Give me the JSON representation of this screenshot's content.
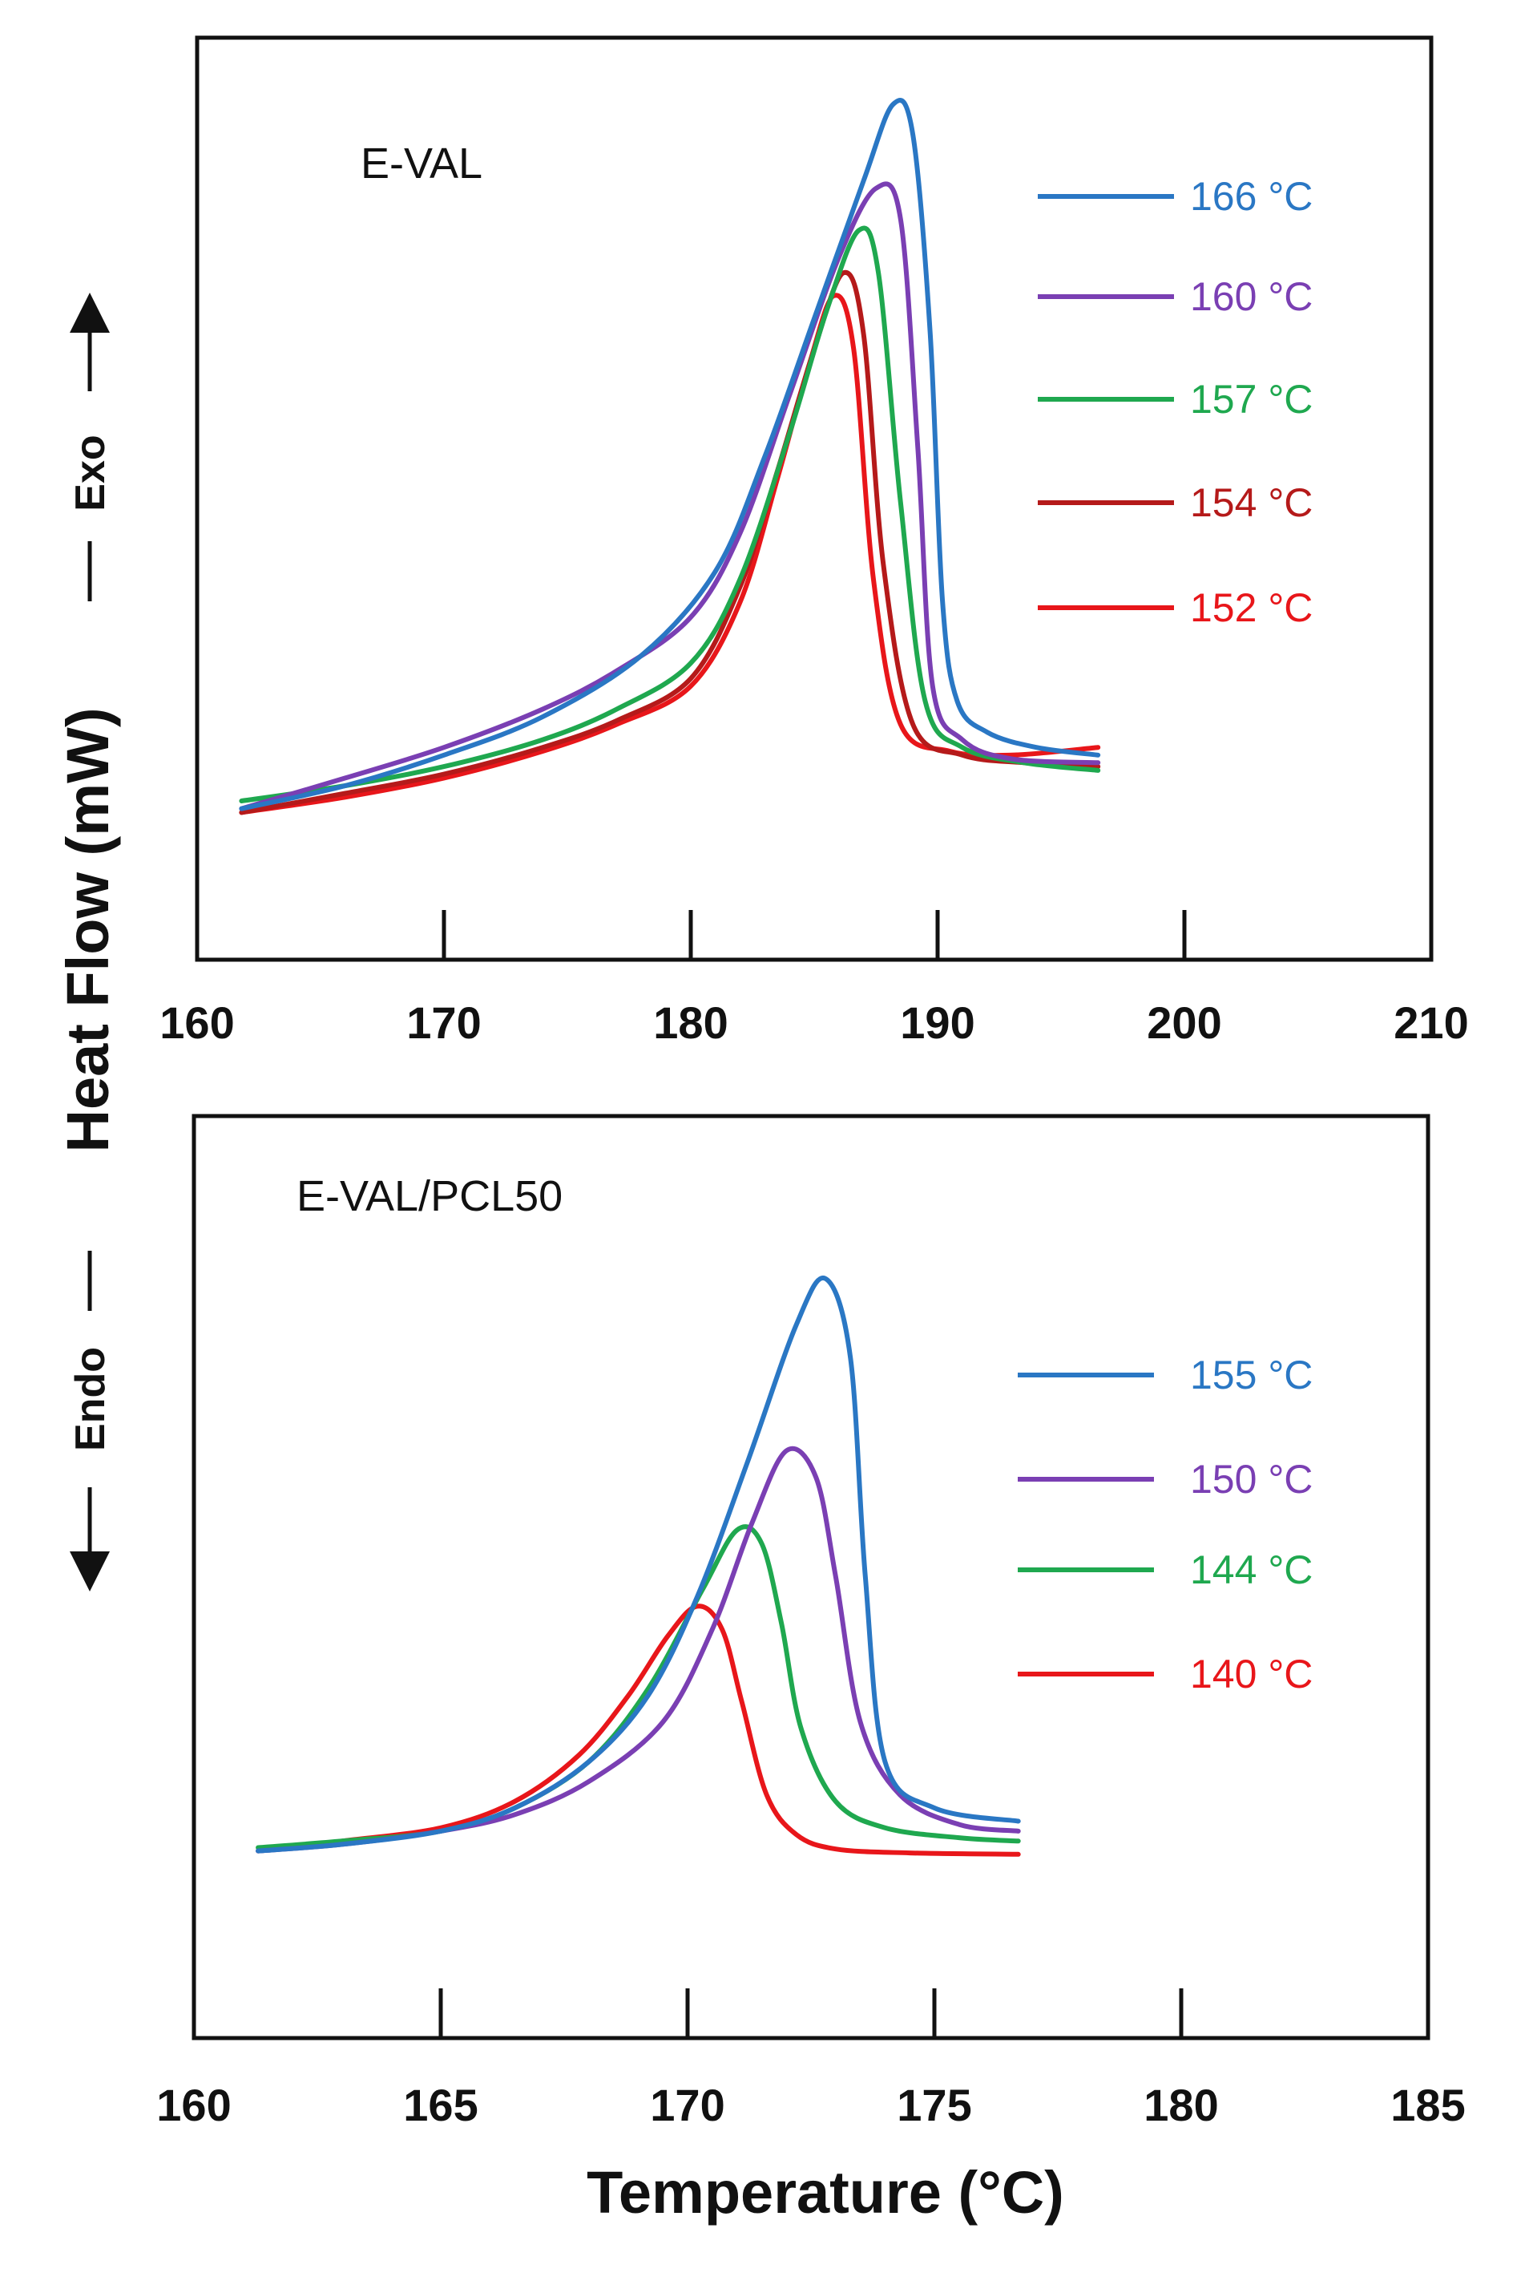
{
  "chart_data": [
    {
      "type": "line",
      "title": "E-VAL",
      "xlabel": "Temperature (°C)",
      "ylabel": "Heat Flow (mW)",
      "xlim": [
        160,
        210
      ],
      "ylim": [
        0,
        100
      ],
      "xticks": [
        "160",
        "170",
        "180",
        "190",
        "200",
        "210"
      ],
      "series": [
        {
          "name": "166 °C",
          "color": "#2a77c4",
          "x": [
            161.8,
            166,
            170,
            174,
            178,
            181,
            183,
            185,
            187,
            188.2,
            189,
            189.7,
            190.2,
            190.8,
            192,
            194,
            196.5
          ],
          "y": [
            8,
            11,
            15,
            20,
            28,
            39,
            54,
            72,
            90,
            100,
            96,
            70,
            35,
            22,
            18,
            16,
            15
          ]
        },
        {
          "name": "160 °C",
          "color": "#7a3fb3",
          "x": [
            161.8,
            166,
            170,
            174,
            177,
            180,
            182,
            184,
            186,
            187.5,
            188.5,
            189.2,
            189.8,
            191,
            193,
            196.5
          ],
          "y": [
            8,
            12,
            16,
            21,
            26,
            33,
            44,
            62,
            80,
            89,
            85,
            55,
            24,
            17,
            14.5,
            14
          ]
        },
        {
          "name": "157 °C",
          "color": "#1fa84f",
          "x": [
            161.8,
            166,
            170,
            174,
            177,
            180,
            182,
            184,
            185.5,
            186.8,
            187.6,
            188.5,
            189.5,
            191,
            193.5,
            196.5
          ],
          "y": [
            9,
            11,
            13.5,
            17,
            21,
            27,
            38,
            57,
            73,
            83.5,
            78,
            48,
            22,
            16,
            14,
            13
          ]
        },
        {
          "name": "154 °C",
          "color": "#b51a1a",
          "x": [
            161.8,
            166,
            170,
            174,
            177,
            180,
            182,
            183.5,
            185,
            186.2,
            187,
            187.8,
            189,
            191,
            193.5,
            196.5
          ],
          "y": [
            7.5,
            10,
            12.5,
            16,
            19.5,
            25,
            37,
            52,
            68,
            78,
            70,
            40,
            19,
            15,
            14,
            13.5
          ]
        },
        {
          "name": "152 °C",
          "color": "#e8161a",
          "x": [
            161.8,
            166,
            170,
            174,
            177,
            180,
            182,
            183.5,
            184.8,
            185.8,
            186.6,
            187.4,
            188.5,
            190.5,
            193,
            196.5
          ],
          "y": [
            7.5,
            9.5,
            12,
            15.5,
            19,
            24,
            35,
            51,
            66,
            75,
            68,
            38,
            19,
            15.5,
            15,
            16
          ]
        }
      ]
    },
    {
      "type": "line",
      "title": "E-VAL/PCL50",
      "xlabel": "Temperature (°C)",
      "ylabel": "Heat Flow (mW)",
      "xlim": [
        160,
        185
      ],
      "ylim": [
        0,
        100
      ],
      "xticks": [
        "160",
        "165",
        "170",
        "175",
        "180",
        "185"
      ],
      "series": [
        {
          "name": "155 °C",
          "color": "#2a77c4",
          "x": [
            161.3,
            163,
            165,
            166.5,
            168,
            169.2,
            170.2,
            171.2,
            172.2,
            172.8,
            173.3,
            173.6,
            174,
            175,
            176.7
          ],
          "y": [
            13.5,
            14.5,
            16.5,
            20,
            27,
            37,
            52,
            72,
            93,
            100,
            88,
            55,
            27,
            20,
            18
          ]
        },
        {
          "name": "150 °C",
          "color": "#7a3fb3",
          "x": [
            161.3,
            163,
            165,
            166.5,
            168,
            169.5,
            170.5,
            171.3,
            172,
            172.6,
            173,
            173.5,
            174.3,
            175.5,
            176.7
          ],
          "y": [
            13.5,
            14.5,
            16.5,
            19,
            24,
            33,
            47,
            63,
            74,
            70,
            55,
            33,
            22,
            17.5,
            16.5
          ]
        },
        {
          "name": "144 °C",
          "color": "#1fa84f",
          "x": [
            161.3,
            163,
            165,
            166.5,
            168,
            169.2,
            170.3,
            171,
            171.5,
            171.9,
            172.3,
            173,
            174,
            175.5,
            176.7
          ],
          "y": [
            14,
            15,
            16.5,
            20,
            27,
            38,
            53,
            62,
            60,
            48,
            32,
            21,
            17,
            15.5,
            15
          ]
        },
        {
          "name": "140 °C",
          "color": "#e8161a",
          "x": [
            161.3,
            163,
            165,
            166.5,
            167.8,
            168.8,
            169.6,
            170.2,
            170.7,
            171.1,
            171.6,
            172.2,
            173,
            174.5,
            176.7
          ],
          "y": [
            13.5,
            15,
            17,
            21,
            28,
            37,
            46,
            50.5,
            47,
            36,
            22,
            16,
            13.8,
            13.2,
            13
          ]
        }
      ]
    }
  ],
  "labels": {
    "y_axis_title": "Heat Flow (mW)",
    "x_axis_title": "Temperature (°C)",
    "exo": "Exo",
    "endo": "Endo"
  }
}
